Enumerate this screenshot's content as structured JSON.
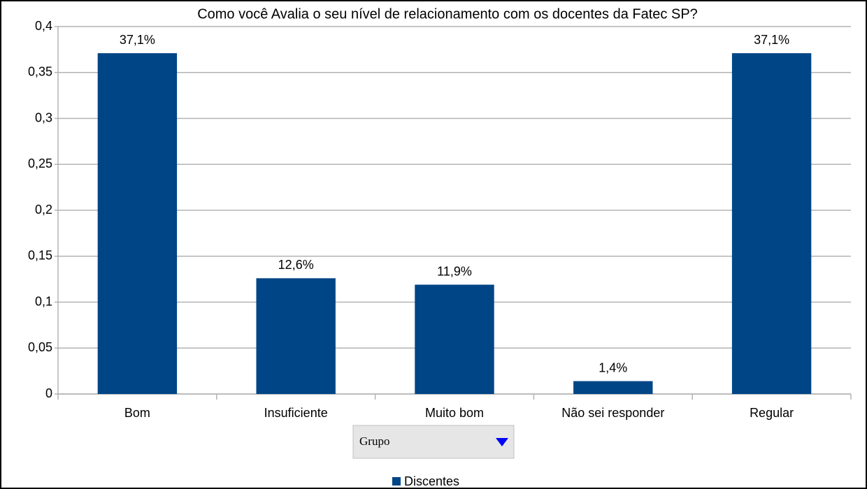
{
  "chart_data": {
    "type": "bar",
    "title": "Como você Avalia o seu nível de relacionamento com os docentes da Fatec SP?",
    "categories": [
      "Bom",
      "Insuficiente",
      "Muito bom",
      "Não sei responder",
      "Regular"
    ],
    "series": [
      {
        "name": "Discentes",
        "color": "#004586",
        "values": [
          0.371,
          0.126,
          0.119,
          0.014,
          0.371
        ],
        "value_labels": [
          "37,1%",
          "12,6%",
          "11,9%",
          "1,4%",
          "37,1%"
        ]
      }
    ],
    "ylim": [
      0,
      0.4
    ],
    "yticks": [
      0,
      {
        "value": 0.05,
        "label": "0,05"
      },
      {
        "value": 0.1,
        "label": "0,1"
      },
      {
        "value": 0.15,
        "label": "0,15"
      },
      {
        "value": 0.2,
        "label": "0,2"
      },
      {
        "value": 0.25,
        "label": "0,25"
      },
      {
        "value": 0.3,
        "label": "0,3"
      },
      {
        "value": 0.35,
        "label": "0,35"
      },
      {
        "value": 0.4,
        "label": "0,4"
      }
    ],
    "grid": true,
    "field_button": "Grupo",
    "legend": "bottom"
  }
}
